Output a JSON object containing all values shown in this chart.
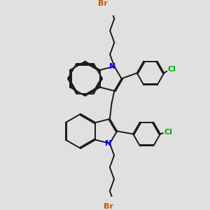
{
  "background_color": "#e0e0e0",
  "line_color": "#1a1a1a",
  "N_color": "#0000ee",
  "Br_color": "#cc5500",
  "Cl_color": "#00aa00",
  "line_width": 1.4,
  "dbo": 0.012,
  "figsize": [
    3.0,
    3.0
  ],
  "dpi": 100,
  "xlim": [
    -1.0,
    1.0
  ],
  "ylim": [
    -1.0,
    1.0
  ]
}
